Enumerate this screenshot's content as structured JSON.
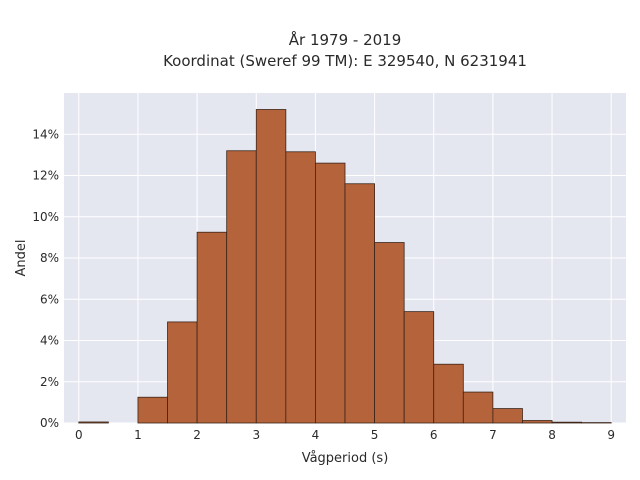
{
  "chart_data": {
    "type": "bar",
    "title_line1": "År 1979 - 2019",
    "title_line2": "Koordinat (Sweref 99 TM): E 329540, N 6231941",
    "xlabel": "Vågperiod (s)",
    "ylabel": "Andel",
    "bin_width": 0.5,
    "bin_starts": [
      0.0,
      0.5,
      1.0,
      1.5,
      2.0,
      2.5,
      3.0,
      3.5,
      4.0,
      4.5,
      5.0,
      5.5,
      6.0,
      6.5,
      7.0,
      7.5,
      8.0,
      8.5
    ],
    "values": [
      0.05,
      0.0,
      1.25,
      4.9,
      9.25,
      13.2,
      15.2,
      13.15,
      12.6,
      11.6,
      8.75,
      5.4,
      2.85,
      1.5,
      0.7,
      0.12,
      0.04,
      0.02
    ],
    "xlim": [
      -0.25,
      9.25
    ],
    "ylim": [
      0,
      16
    ],
    "x_ticks": [
      0,
      1,
      2,
      3,
      4,
      5,
      6,
      7,
      8,
      9
    ],
    "y_ticks": [
      0,
      2,
      4,
      6,
      8,
      10,
      12,
      14
    ],
    "y_tick_suffix": "%",
    "grid": true,
    "colors": {
      "bar_fill": "#b5633a",
      "bar_stroke": "#3b2418",
      "plot_background": "#e5e7f0",
      "grid": "#ffffff"
    }
  }
}
